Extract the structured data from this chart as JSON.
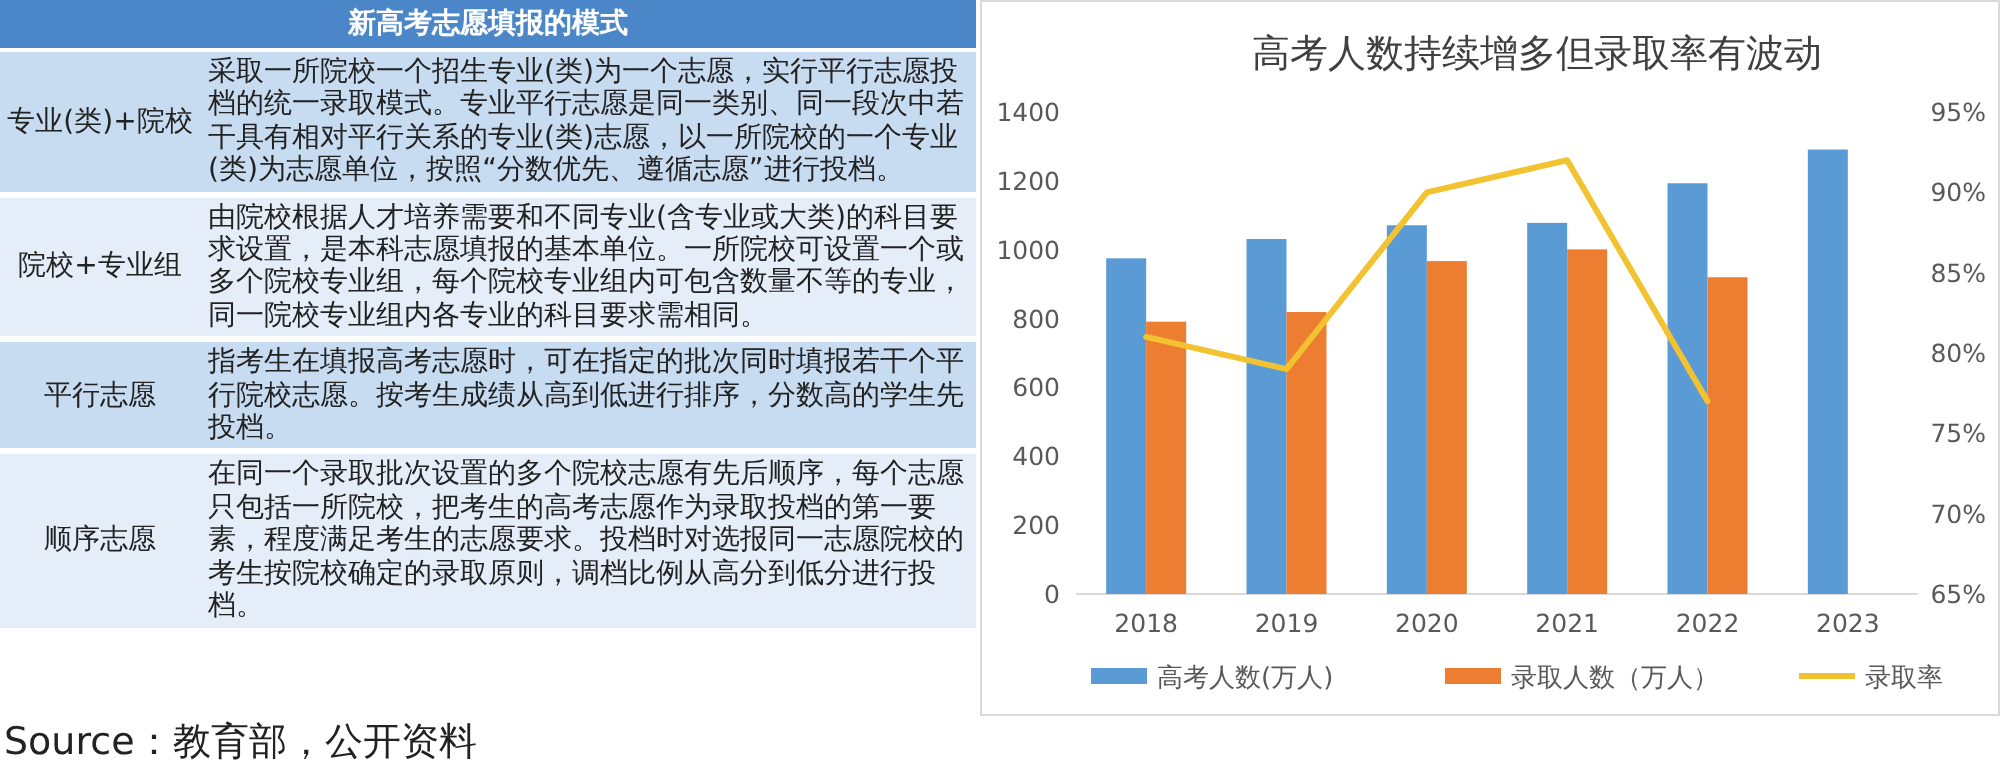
{
  "chart_data": [
    {
      "type": "other",
      "title": "新高考志愿填报的模式",
      "categories": [
        "专业(类)+院校",
        "院校+专业组",
        "平行志愿",
        "顺序志愿"
      ],
      "annotations": [
        "采取一所院校一个招生专业(类)为一个志愿，实行平行志愿投档的统一录取模式。专业平行志愿是同一类别、同一段次中若干具有相对平行关系的专业(类)志愿，以一所院校的一个专业(类)为志愿单位，按照“分数优先、遵循志愿”进行投档。",
        "由院校根据人才培养需要和不同专业(含专业或大类)的科目要求设置，是本科志愿填报的基本单位。一所院校可设置一个或多个院校专业组，每个院校专业组内可包含数量不等的专业，同一院校专业组内各专业的科目要求需相同。",
        "指考生在填报高考志愿时，可在指定的批次同时填报若干个平行院校志愿。按考生成绩从高到低进行排序，分数高的学生先投档。",
        "在同一个录取批次设置的多个院校志愿有先后顺序，每个志愿只包括一所院校，把考生的高考志愿作为录取投档的第一要素，程度满足考生的志愿要求。投档时对选报同一志愿院校的考生按院校确定的录取原则，调档比例从高分到低分进行投档。",
        "Source：教育部，公开资料"
      ]
    },
    {
      "type": "bar",
      "title": "高考人数持续增多但录取率有波动",
      "categories": [
        "2018",
        "2019",
        "2020",
        "2021",
        "2022",
        "2023"
      ],
      "series": [
        {
          "name": "高考人数(万人)",
          "color": "#5b9bd5",
          "values": [
            975,
            1031,
            1071,
            1078,
            1193,
            1291
          ]
        },
        {
          "name": "录取人数（万人）",
          "color": "#ed7d31",
          "values": [
            791,
            819,
            967,
            1001,
            920,
            null
          ]
        },
        {
          "name": "录取率",
          "type": "line",
          "axis": "y2",
          "color": "#f2c230",
          "values": [
            81,
            79,
            90,
            92,
            77,
            null
          ]
        }
      ],
      "ylim": [
        0,
        1400
      ],
      "yticks": [
        0,
        200,
        400,
        600,
        800,
        1000,
        1200,
        1400
      ],
      "y2lim": [
        65,
        95
      ],
      "y2ticks": [
        {
          "value": 65,
          "label": "65%"
        },
        {
          "value": 70,
          "label": "70%"
        },
        {
          "value": 75,
          "label": "75%"
        },
        {
          "value": 80,
          "label": "80%"
        },
        {
          "value": 85,
          "label": "85%"
        },
        {
          "value": 90,
          "label": "90%"
        },
        {
          "value": 95,
          "label": "95%"
        }
      ],
      "legend": "bottom"
    }
  ]
}
